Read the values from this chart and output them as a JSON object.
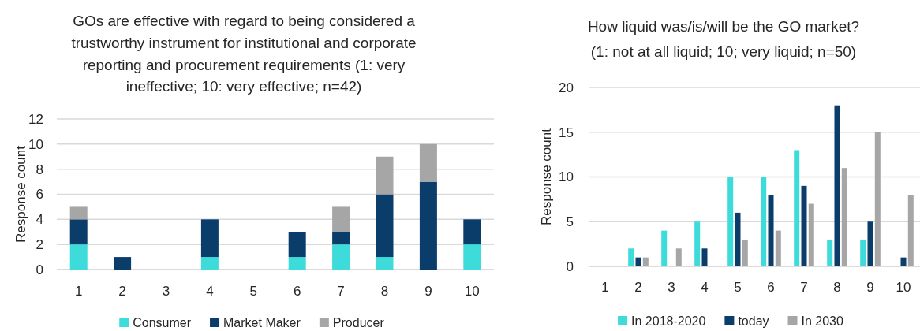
{
  "chart_data": [
    {
      "type": "bar",
      "title": "GOs are effective with regard to being considered a trustworthy instrument for institutional and corporate reporting and procurement requirements (1: very ineffective; 10: very effective; n=42)",
      "ylabel": "Response count",
      "categories": [
        "1",
        "2",
        "3",
        "4",
        "5",
        "6",
        "7",
        "8",
        "9",
        "10"
      ],
      "stacked": true,
      "series": [
        {
          "name": "Consumer",
          "color": "#3ddbd9",
          "values": [
            2,
            0,
            0,
            1,
            0,
            1,
            2,
            1,
            0,
            2
          ]
        },
        {
          "name": "Market Maker",
          "color": "#0b3d6b",
          "values": [
            2,
            1,
            0,
            3,
            0,
            2,
            1,
            5,
            7,
            2
          ]
        },
        {
          "name": "Producer",
          "color": "#a6a6a6",
          "values": [
            1,
            0,
            0,
            0,
            0,
            0,
            2,
            3,
            3,
            0
          ]
        }
      ],
      "ylim": [
        0,
        12
      ],
      "yticks": [
        0,
        2,
        4,
        6,
        8,
        10,
        12
      ],
      "grid": "y",
      "legend": "bottom"
    },
    {
      "type": "bar",
      "title": "How liquid was/is/will be the GO market? (1: not at all liquid; 10; very liquid; n=50)",
      "ylabel": "Response count",
      "categories": [
        "1",
        "2",
        "3",
        "4",
        "5",
        "6",
        "7",
        "8",
        "9",
        "10"
      ],
      "series": [
        {
          "name": "In 2018-2020",
          "color": "#3ddbd9",
          "values": [
            0,
            2,
            4,
            5,
            10,
            10,
            13,
            3,
            3,
            0
          ]
        },
        {
          "name": "today",
          "color": "#0b3d6b",
          "values": [
            0,
            1,
            0,
            2,
            6,
            8,
            9,
            18,
            5,
            1
          ]
        },
        {
          "name": "In 2030",
          "color": "#a6a6a6",
          "values": [
            0,
            1,
            2,
            0,
            3,
            4,
            7,
            11,
            15,
            8
          ]
        }
      ],
      "ylim": [
        0,
        20
      ],
      "yticks": [
        0,
        5,
        10,
        15,
        20
      ],
      "grid": "y",
      "legend": "bottom"
    }
  ]
}
